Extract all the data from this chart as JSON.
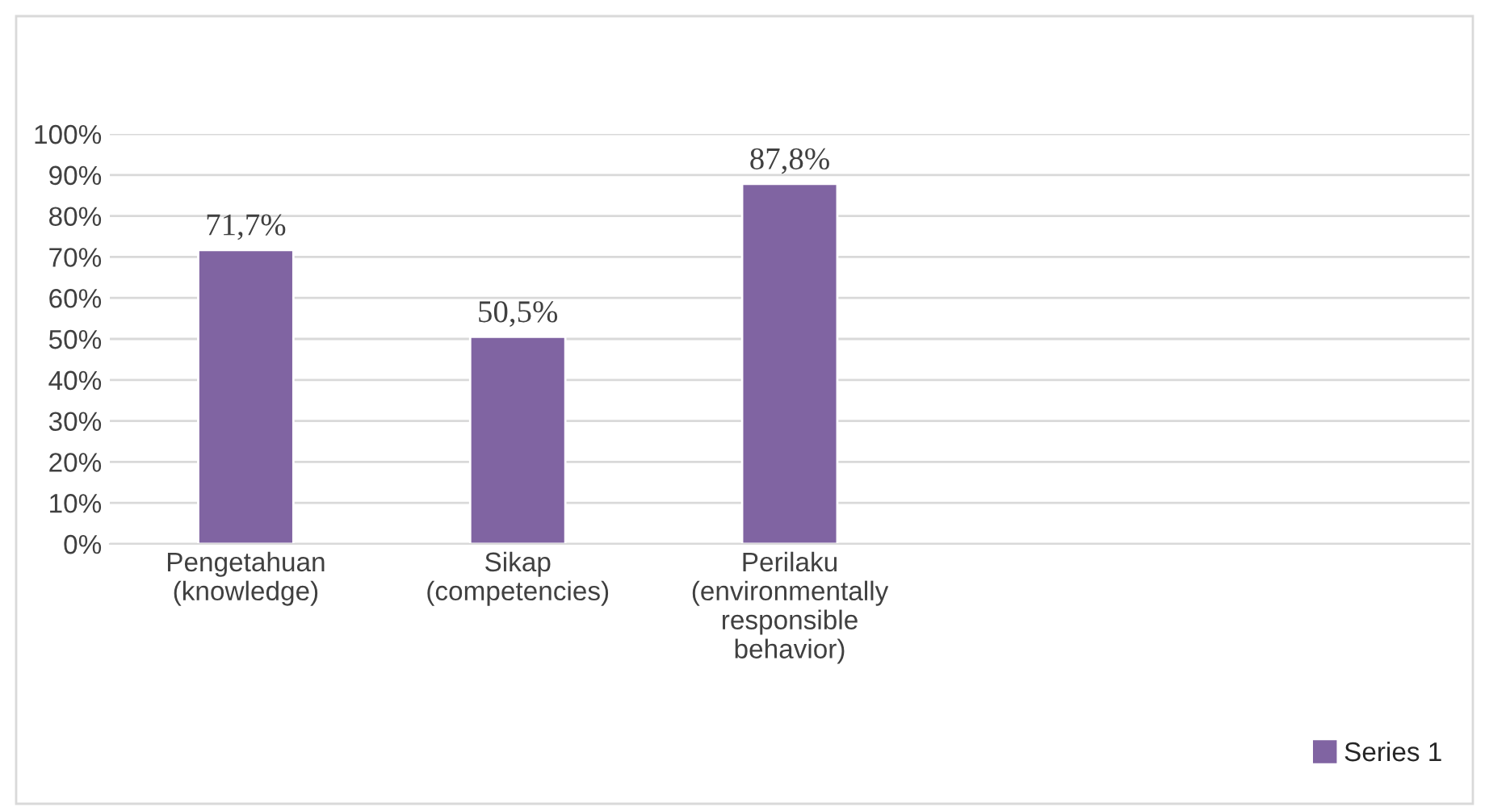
{
  "chart_data": {
    "type": "bar",
    "categories": [
      "Pengetahuan\n(knowledge)",
      "Sikap\n(competencies)",
      "Perilaku\n(environmentally\nresponsible\nbehavior)",
      null,
      null
    ],
    "series": [
      {
        "name": "Series 1",
        "color": "#8064a2",
        "values": [
          71.7,
          50.5,
          87.8,
          null,
          null
        ],
        "value_labels": [
          "71,7%",
          "50,5%",
          "87,8%",
          null,
          null
        ]
      }
    ],
    "ylim": [
      0,
      100
    ],
    "yticks": [
      {
        "value": 0,
        "label": "0%"
      },
      {
        "value": 10,
        "label": "10%"
      },
      {
        "value": 20,
        "label": "20%"
      },
      {
        "value": 30,
        "label": "30%"
      },
      {
        "value": 40,
        "label": "40%"
      },
      {
        "value": 50,
        "label": "50%"
      },
      {
        "value": 60,
        "label": "60%"
      },
      {
        "value": 70,
        "label": "70%"
      },
      {
        "value": 80,
        "label": "80%"
      },
      {
        "value": 90,
        "label": "90%"
      },
      {
        "value": 100,
        "label": "100%"
      }
    ],
    "grid": "y",
    "legend": "bottom right"
  }
}
